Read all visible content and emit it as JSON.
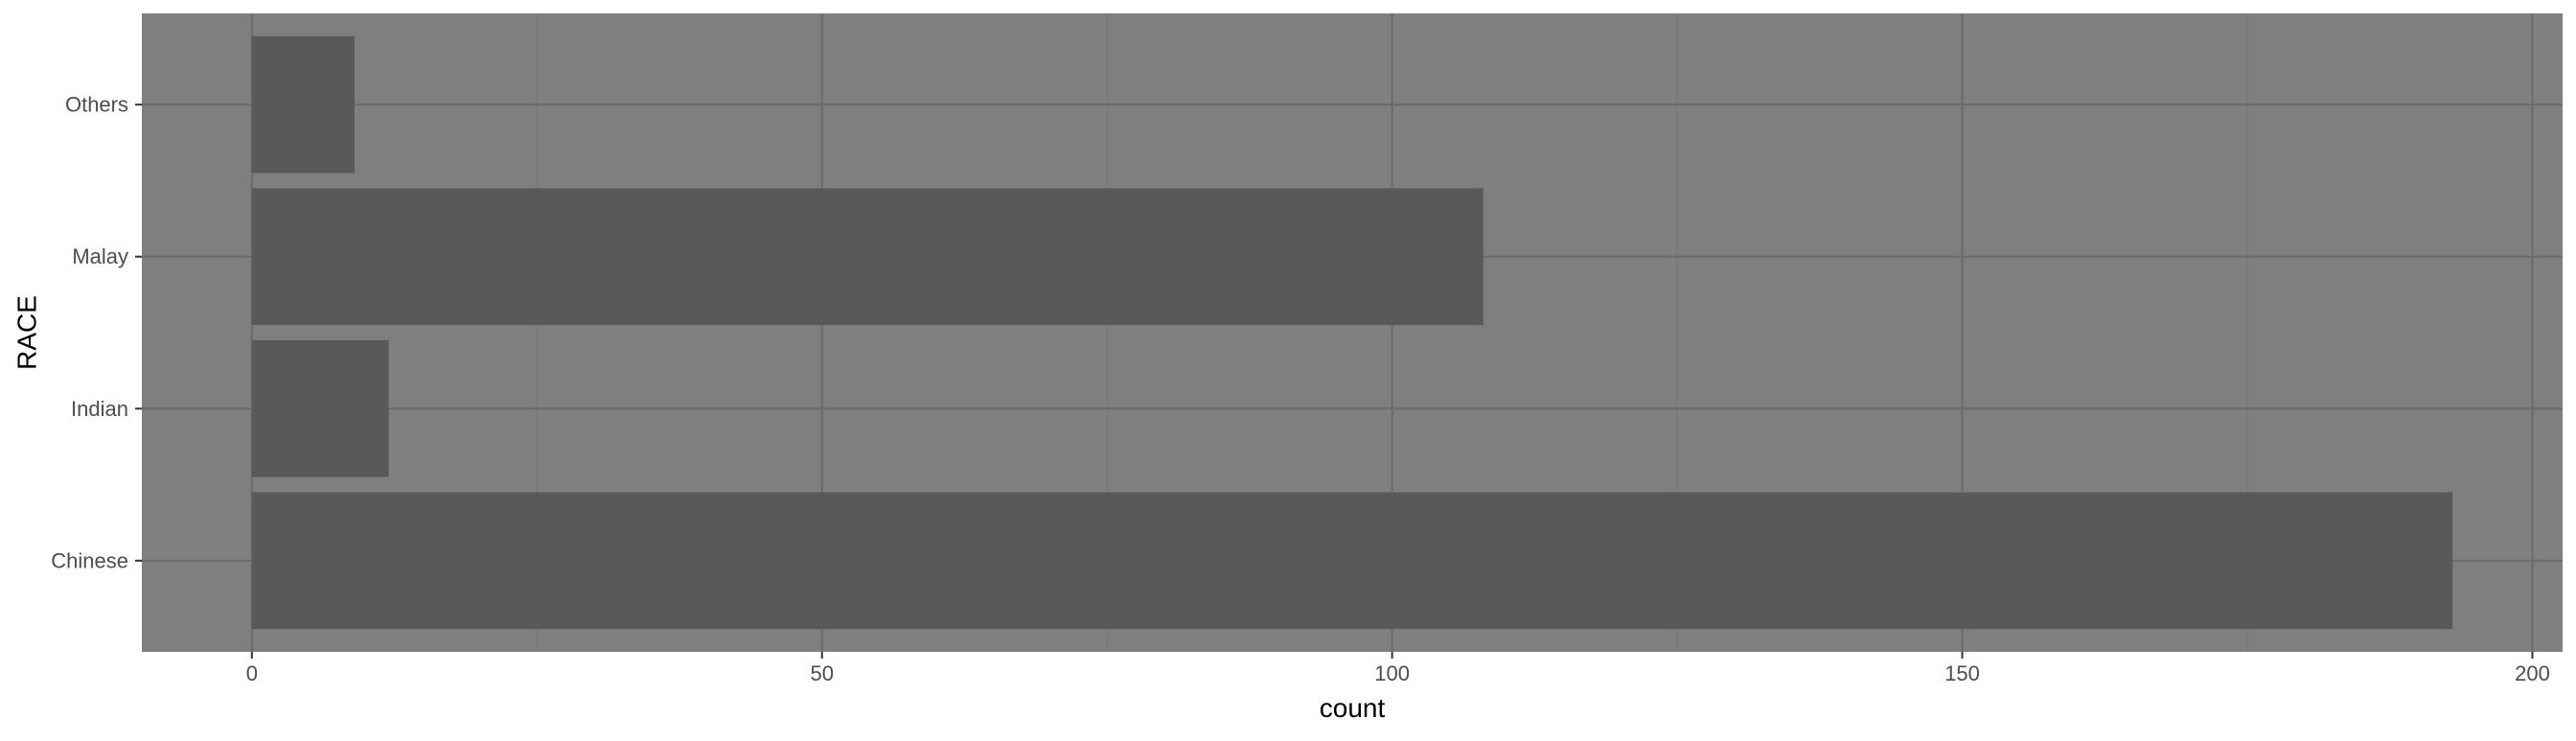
{
  "chart_data": {
    "type": "bar",
    "orientation": "horizontal",
    "categories": [
      "Chinese",
      "Indian",
      "Malay",
      "Others"
    ],
    "values": [
      193,
      12,
      108,
      9
    ],
    "title": "",
    "xlabel": "count",
    "ylabel": "RACE",
    "xlim": [
      -9.65,
      202.65
    ],
    "xticks": [
      0,
      50,
      100,
      150,
      200
    ],
    "grid": true,
    "legend": "none",
    "colors": {
      "panel_background": "#7f7f7f",
      "grid_major": "#6a6a6a",
      "grid_minor": "#767676",
      "bar_fill": "#595959",
      "tick_text": "#4d4d4d",
      "axis_title": "#000000"
    }
  }
}
